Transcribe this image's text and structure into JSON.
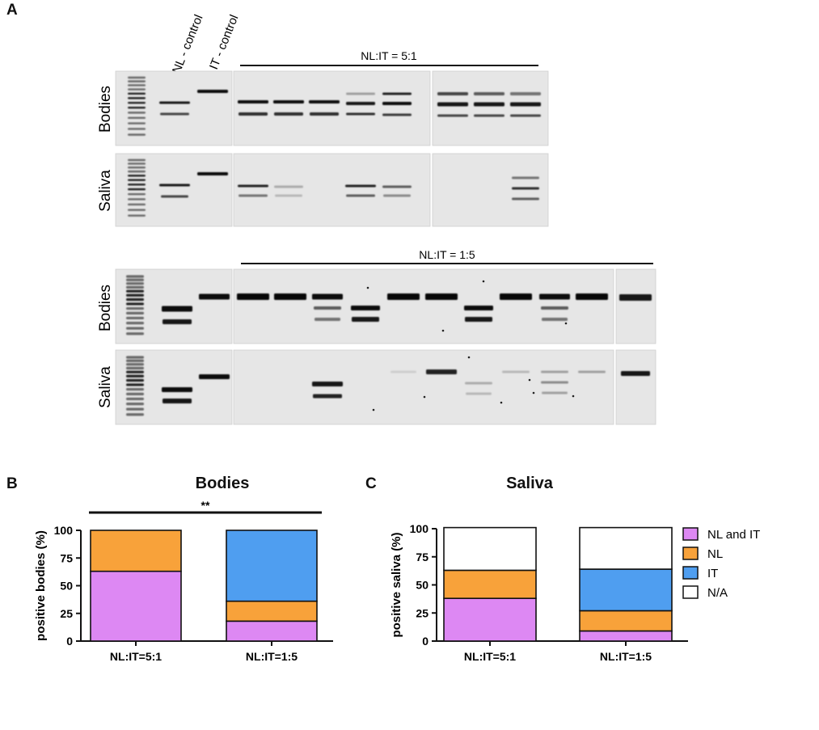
{
  "panel_letters": {
    "a": "A",
    "b": "B",
    "c": "C"
  },
  "gel": {
    "control_labels": [
      "NL - control",
      "IT - control"
    ],
    "row_labels": {
      "bodies": "Bodies",
      "saliva": "Saliva"
    },
    "group1": "NL:IT = 5:1",
    "group2": "NL:IT = 1:5"
  },
  "chart_data": [
    {
      "type": "bar",
      "stacked": true,
      "title": "Bodies",
      "ylabel": "positive bodies (%)",
      "xlabel": "",
      "categories": [
        "NL:IT=5:1",
        "NL:IT=1:5"
      ],
      "ylim": [
        0,
        100
      ],
      "yticks": [
        0,
        25,
        50,
        75,
        100
      ],
      "series": [
        {
          "name": "NL and IT",
          "color": "#dd88f3",
          "values": [
            63,
            18
          ]
        },
        {
          "name": "NL",
          "color": "#f8a23a",
          "values": [
            37,
            18
          ]
        },
        {
          "name": "IT",
          "color": "#4f9ef0",
          "values": [
            0,
            64
          ]
        }
      ],
      "annotation": "**"
    },
    {
      "type": "bar",
      "stacked": true,
      "title": "Saliva",
      "ylabel": "positive saliva (%)",
      "xlabel": "",
      "categories": [
        "NL:IT=5:1",
        "NL:IT=1:5"
      ],
      "ylim": [
        0,
        100
      ],
      "yticks": [
        0,
        25,
        50,
        75,
        100
      ],
      "series": [
        {
          "name": "NL and IT",
          "color": "#dd88f3",
          "values": [
            38,
            9
          ]
        },
        {
          "name": "NL",
          "color": "#f8a23a",
          "values": [
            25,
            18
          ]
        },
        {
          "name": "IT",
          "color": "#4f9ef0",
          "values": [
            0,
            37
          ]
        },
        {
          "name": "N/A",
          "color": "#ffffff",
          "values": [
            38,
            37
          ]
        }
      ],
      "legend": "right"
    }
  ]
}
